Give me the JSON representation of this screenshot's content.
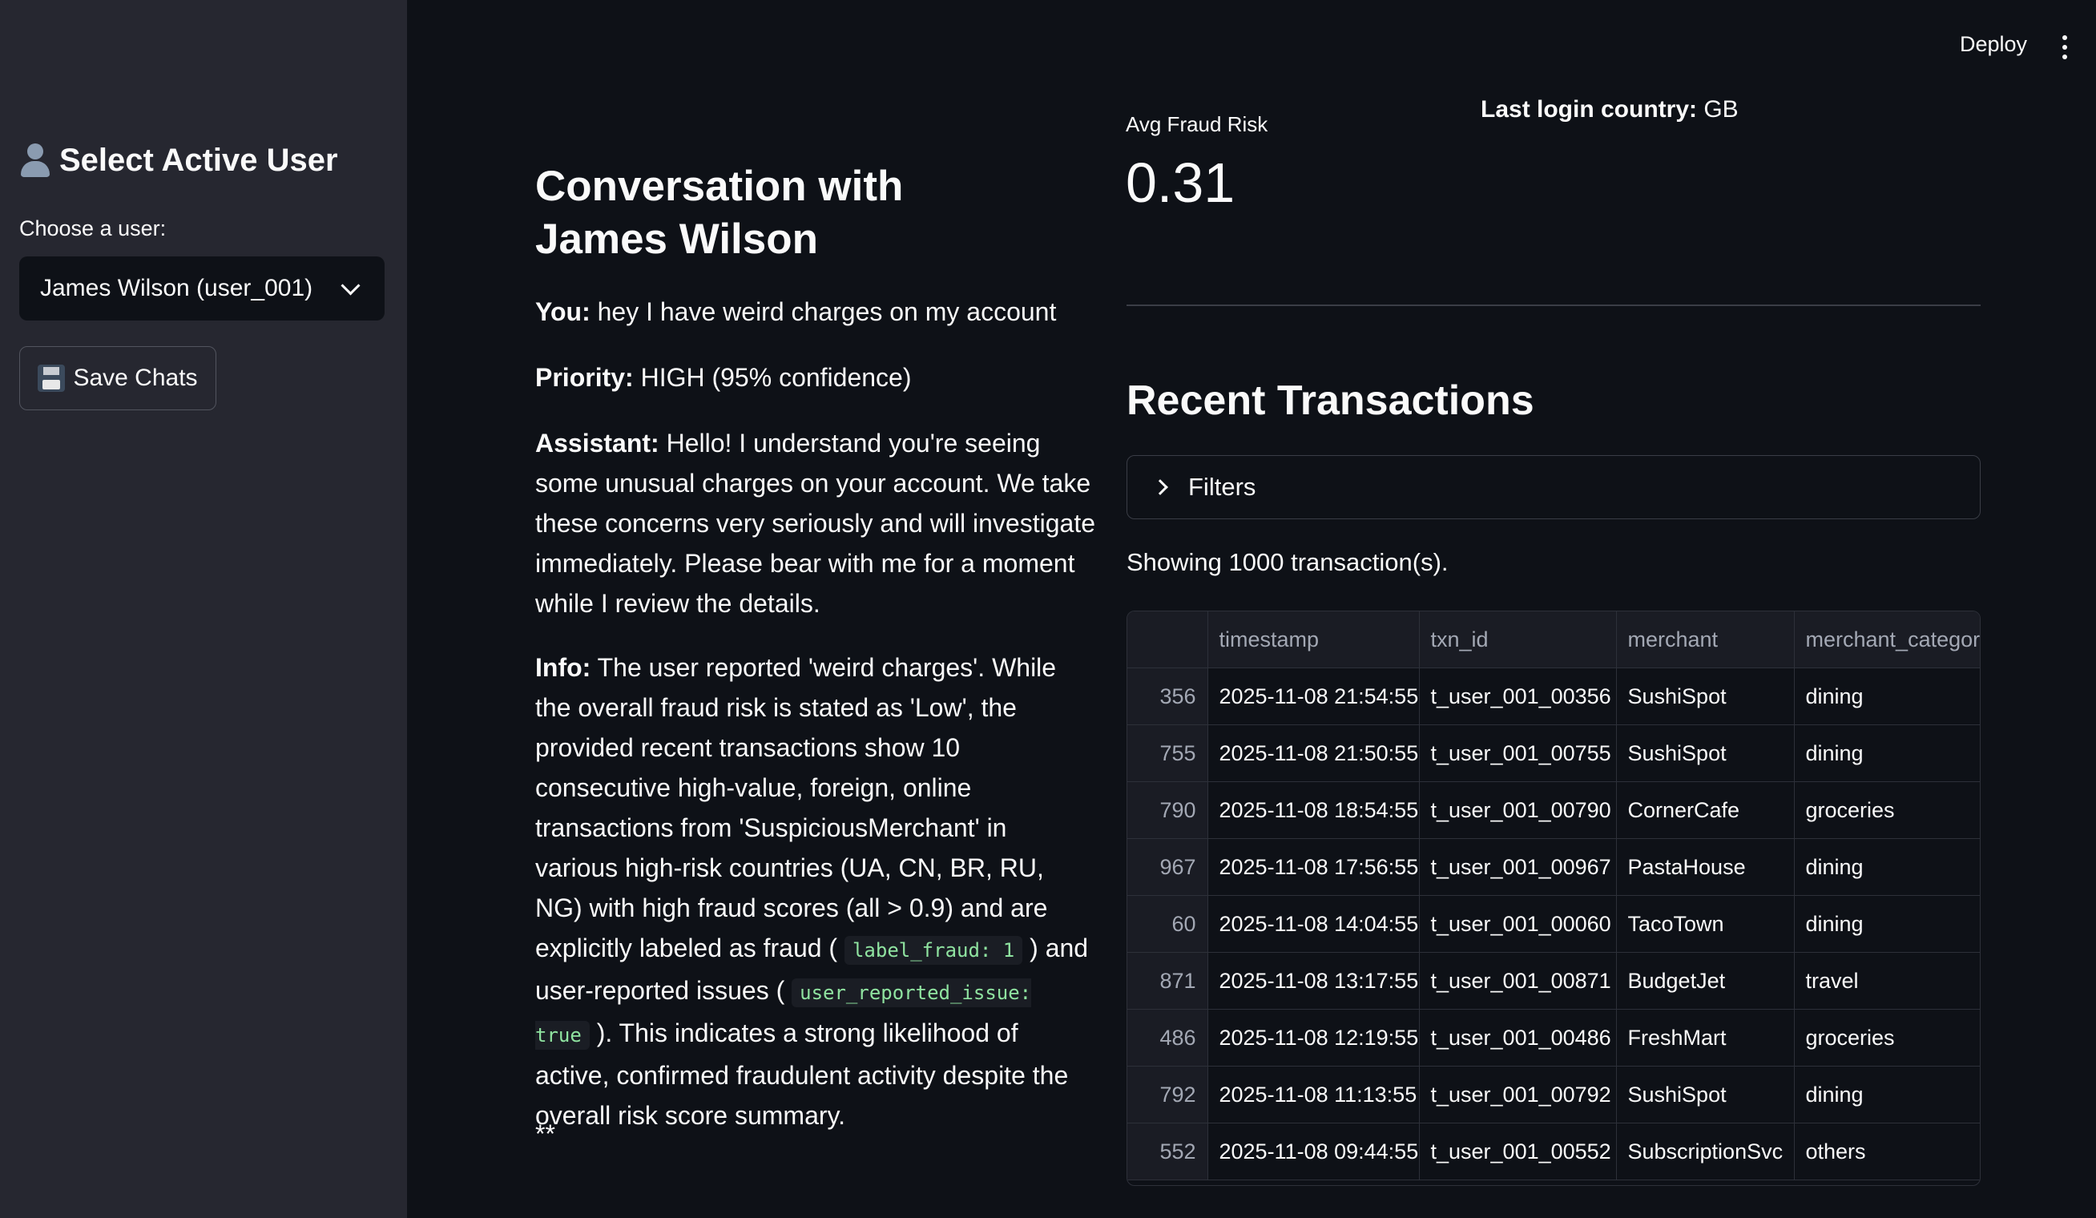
{
  "sidebar": {
    "title": "Select Active User",
    "choose_label": "Choose a user:",
    "selected_user": "James Wilson (user_001)",
    "save_label": "Save Chats"
  },
  "header": {
    "deploy_label": "Deploy"
  },
  "conversation": {
    "title": "Conversation with James Wilson",
    "you_label": "You:",
    "you_text": " hey I have weird charges on my account",
    "priority_label": "Priority:",
    "priority_text": " HIGH (95% confidence)",
    "assistant_label": "Assistant:",
    "assistant_text": " Hello! I understand you're seeing some unusual charges on your account. We take these concerns very seriously and will investigate immediately. Please bear with me for a moment while I review the details.",
    "info_label": "Info:",
    "info_text_1": " The user reported 'weird charges'. While the overall fraud risk is stated as 'Low', the provided recent transactions show 10 consecutive high-value, foreign, online transactions from 'SuspiciousMerchant' in various high-risk countries (UA, CN, BR, RU, NG) with high fraud scores (all > 0.9) and are explicitly labeled as fraud ( ",
    "info_code_1": "label_fraud: 1",
    "info_text_2": " ) and user-reported issues ( ",
    "info_code_2": "user_reported_issue: true",
    "info_text_3": " ). This indicates a strong likelihood of active, confirmed fraudulent activity despite the overall risk score summary.",
    "trailing": "**"
  },
  "metrics": {
    "avg_label": "Avg Fraud Risk",
    "avg_value": "0.31",
    "login_label": "Last login country:",
    "login_value": " GB"
  },
  "transactions": {
    "title": "Recent Transactions",
    "filters_label": "Filters",
    "showing_text": "Showing 1000 transaction(s).",
    "columns": [
      "",
      "timestamp",
      "txn_id",
      "merchant",
      "merchant_categor"
    ],
    "rows": [
      [
        "356",
        "2025-11-08 21:54:55",
        "t_user_001_00356",
        "SushiSpot",
        "dining"
      ],
      [
        "755",
        "2025-11-08 21:50:55",
        "t_user_001_00755",
        "SushiSpot",
        "dining"
      ],
      [
        "790",
        "2025-11-08 18:54:55",
        "t_user_001_00790",
        "CornerCafe",
        "groceries"
      ],
      [
        "967",
        "2025-11-08 17:56:55",
        "t_user_001_00967",
        "PastaHouse",
        "dining"
      ],
      [
        "60",
        "2025-11-08 14:04:55",
        "t_user_001_00060",
        "TacoTown",
        "dining"
      ],
      [
        "871",
        "2025-11-08 13:17:55",
        "t_user_001_00871",
        "BudgetJet",
        "travel"
      ],
      [
        "486",
        "2025-11-08 12:19:55",
        "t_user_001_00486",
        "FreshMart",
        "groceries"
      ],
      [
        "792",
        "2025-11-08 11:13:55",
        "t_user_001_00792",
        "SushiSpot",
        "dining"
      ],
      [
        "552",
        "2025-11-08 09:44:55",
        "t_user_001_00552",
        "SubscriptionSvc",
        "others"
      ]
    ]
  }
}
